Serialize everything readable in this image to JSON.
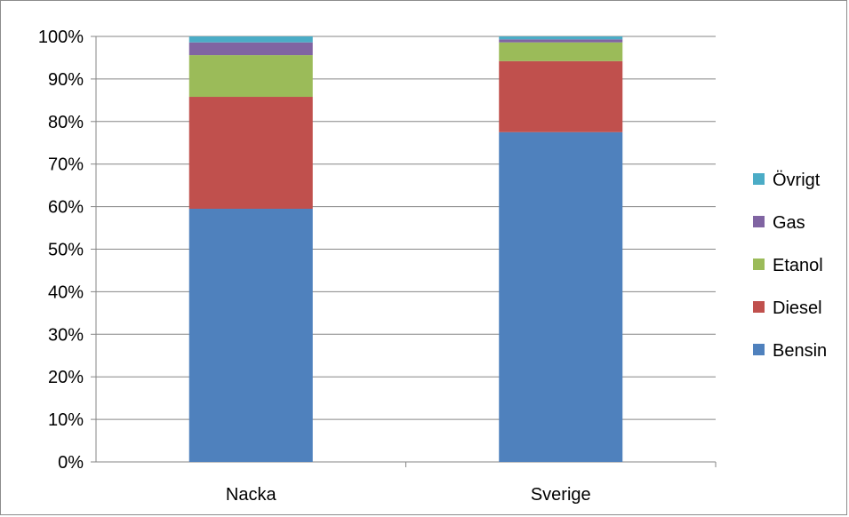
{
  "chart_data": {
    "type": "bar",
    "stacked": true,
    "percent": true,
    "categories": [
      "Nacka",
      "Sverige"
    ],
    "series": [
      {
        "name": "Bensin",
        "color": "#4F81BD",
        "values": [
          59.5,
          77.5
        ]
      },
      {
        "name": "Diesel",
        "color": "#C0504D",
        "values": [
          26.3,
          16.7
        ]
      },
      {
        "name": "Etanol",
        "color": "#9BBB59",
        "values": [
          9.8,
          4.4
        ]
      },
      {
        "name": "Gas",
        "color": "#8064A2",
        "values": [
          3.0,
          0.7
        ]
      },
      {
        "name": "Övrigt",
        "color": "#4BACC6",
        "values": [
          1.4,
          0.7
        ]
      }
    ],
    "y_ticks": [
      "0%",
      "10%",
      "20%",
      "30%",
      "40%",
      "50%",
      "60%",
      "70%",
      "80%",
      "90%",
      "100%"
    ],
    "ylim": [
      0,
      100
    ],
    "grid": true,
    "legend_position": "right"
  }
}
